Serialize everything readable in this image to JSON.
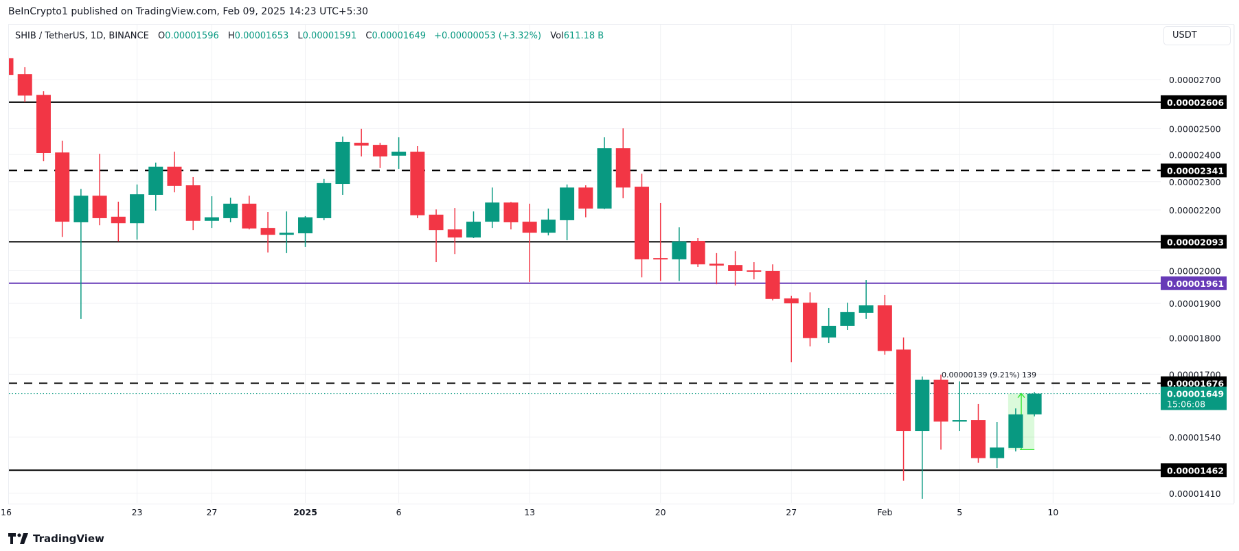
{
  "header": {
    "published": "BeInCrypto1 published on TradingView.com, Feb 09, 2025 14:23 UTC+5:30",
    "symbol": "SHIB / TetherUS, 1D, BINANCE",
    "o_label": "O",
    "o": "0.00001596",
    "h_label": "H",
    "h": "0.00001653",
    "l_label": "L",
    "l": "0.00001591",
    "c_label": "C",
    "c": "0.00001649",
    "change": "+0.00000053 (+3.32%)",
    "vol_label": "Vol",
    "vol": "611.18 B"
  },
  "currency_button": "USDT",
  "footer": {
    "logo_text": "TradingView"
  },
  "colors": {
    "up": "#089981",
    "down": "#f23645",
    "support_purple": "#673ab7",
    "level": "#000000"
  },
  "chart_data": {
    "type": "candlestick",
    "symbol": "SHIB/USDT",
    "interval": "1D",
    "y_scale": "log",
    "ylim": [
      1.38e-05,
      2.8e-05
    ],
    "grid": true,
    "y_ticks": [
      "0.00002700",
      "0.00002500",
      "0.00002400",
      "0.00002300",
      "0.00002200",
      "0.00002000",
      "0.00001900",
      "0.00001800",
      "0.00001700",
      "0.00001540",
      "0.00001410"
    ],
    "x_ticks": [
      {
        "date": "2024-12-16",
        "label": "16",
        "bold": false
      },
      {
        "date": "2024-12-23",
        "label": "23",
        "bold": false
      },
      {
        "date": "2024-12-27",
        "label": "27",
        "bold": false
      },
      {
        "date": "2025-01-01",
        "label": "2025",
        "bold": true
      },
      {
        "date": "2025-01-06",
        "label": "6",
        "bold": false
      },
      {
        "date": "2025-01-13",
        "label": "13",
        "bold": false
      },
      {
        "date": "2025-01-20",
        "label": "20",
        "bold": false
      },
      {
        "date": "2025-01-27",
        "label": "27",
        "bold": false
      },
      {
        "date": "2025-02-01",
        "label": "Feb",
        "bold": false
      },
      {
        "date": "2025-02-05",
        "label": "5",
        "bold": false
      },
      {
        "date": "2025-02-10",
        "label": "10",
        "bold": false
      }
    ],
    "levels": [
      {
        "value": "0.00002606",
        "style": "solid",
        "color": "#000000"
      },
      {
        "value": "0.00002341",
        "style": "dashed",
        "color": "#000000"
      },
      {
        "value": "0.00002093",
        "style": "solid",
        "color": "#000000"
      },
      {
        "value": "0.00001961",
        "style": "solid",
        "color": "#673ab7"
      },
      {
        "value": "0.00001676",
        "style": "dashed",
        "color": "#000000"
      },
      {
        "value": "0.00001462",
        "style": "solid",
        "color": "#000000"
      }
    ],
    "last_price": {
      "value": "0.00001649",
      "countdown": "15:06:08",
      "color": "#089981"
    },
    "measure": {
      "from_date": "2025-02-08",
      "to_date": "2025-02-09",
      "from": 1.51e-05,
      "to": 1.649e-05,
      "label": "0.00000139 (9.21%) 139"
    },
    "candles": [
      {
        "d": "2024-12-16",
        "o": 2.792e-05,
        "h": 2.8e-05,
        "l": 2.717e-05,
        "c": 2.72e-05
      },
      {
        "d": "2024-12-17",
        "o": 2.723e-05,
        "h": 2.753e-05,
        "l": 2.606e-05,
        "c": 2.633e-05
      },
      {
        "d": "2024-12-18",
        "o": 2.636e-05,
        "h": 2.651e-05,
        "l": 2.375e-05,
        "c": 2.406e-05
      },
      {
        "d": "2024-12-19",
        "o": 2.408e-05,
        "h": 2.453e-05,
        "l": 2.109e-05,
        "c": 2.16e-05
      },
      {
        "d": "2024-12-20",
        "o": 2.158e-05,
        "h": 2.274e-05,
        "l": 1.854e-05,
        "c": 2.25e-05
      },
      {
        "d": "2024-12-21",
        "o": 2.25e-05,
        "h": 2.403e-05,
        "l": 2.148e-05,
        "c": 2.172e-05
      },
      {
        "d": "2024-12-22",
        "o": 2.177e-05,
        "h": 2.229e-05,
        "l": 2.094e-05,
        "c": 2.155e-05
      },
      {
        "d": "2024-12-23",
        "o": 2.155e-05,
        "h": 2.29e-05,
        "l": 2.1e-05,
        "c": 2.255e-05
      },
      {
        "d": "2024-12-24",
        "o": 2.253e-05,
        "h": 2.37e-05,
        "l": 2.198e-05,
        "c": 2.355e-05
      },
      {
        "d": "2024-12-25",
        "o": 2.355e-05,
        "h": 2.411e-05,
        "l": 2.262e-05,
        "c": 2.285e-05
      },
      {
        "d": "2024-12-26",
        "o": 2.287e-05,
        "h": 2.317e-05,
        "l": 2.132e-05,
        "c": 2.163e-05
      },
      {
        "d": "2024-12-27",
        "o": 2.163e-05,
        "h": 2.248e-05,
        "l": 2.139e-05,
        "c": 2.175e-05
      },
      {
        "d": "2024-12-28",
        "o": 2.172e-05,
        "h": 2.243e-05,
        "l": 2.158e-05,
        "c": 2.222e-05
      },
      {
        "d": "2024-12-29",
        "o": 2.222e-05,
        "h": 2.25e-05,
        "l": 2.134e-05,
        "c": 2.137e-05
      },
      {
        "d": "2024-12-30",
        "o": 2.139e-05,
        "h": 2.193e-05,
        "l": 2.058e-05,
        "c": 2.116e-05
      },
      {
        "d": "2024-12-31",
        "o": 2.116e-05,
        "h": 2.195e-05,
        "l": 2.056e-05,
        "c": 2.123e-05
      },
      {
        "d": "2025-01-01",
        "o": 2.121e-05,
        "h": 2.179e-05,
        "l": 2.076e-05,
        "c": 2.175e-05
      },
      {
        "d": "2025-01-02",
        "o": 2.172e-05,
        "h": 2.31e-05,
        "l": 2.165e-05,
        "c": 2.295e-05
      },
      {
        "d": "2025-01-03",
        "o": 2.292e-05,
        "h": 2.469e-05,
        "l": 2.253e-05,
        "c": 2.448e-05
      },
      {
        "d": "2025-01-04",
        "o": 2.445e-05,
        "h": 2.499e-05,
        "l": 2.393e-05,
        "c": 2.434e-05
      },
      {
        "d": "2025-01-05",
        "o": 2.437e-05,
        "h": 2.445e-05,
        "l": 2.35e-05,
        "c": 2.393e-05
      },
      {
        "d": "2025-01-06",
        "o": 2.396e-05,
        "h": 2.466e-05,
        "l": 2.347e-05,
        "c": 2.411e-05
      },
      {
        "d": "2025-01-07",
        "o": 2.411e-05,
        "h": 2.432e-05,
        "l": 2.172e-05,
        "c": 2.182e-05
      },
      {
        "d": "2025-01-08",
        "o": 2.184e-05,
        "h": 2.202e-05,
        "l": 2.027e-05,
        "c": 2.132e-05
      },
      {
        "d": "2025-01-09",
        "o": 2.134e-05,
        "h": 2.207e-05,
        "l": 2.053e-05,
        "c": 2.107e-05
      },
      {
        "d": "2025-01-10",
        "o": 2.107e-05,
        "h": 2.195e-05,
        "l": 2.105e-05,
        "c": 2.16e-05
      },
      {
        "d": "2025-01-11",
        "o": 2.16e-05,
        "h": 2.279e-05,
        "l": 2.139e-05,
        "c": 2.226e-05
      },
      {
        "d": "2025-01-12",
        "o": 2.226e-05,
        "h": 2.228e-05,
        "l": 2.134e-05,
        "c": 2.158e-05
      },
      {
        "d": "2025-01-13",
        "o": 2.16e-05,
        "h": 2.222e-05,
        "l": 1.965e-05,
        "c": 2.123e-05
      },
      {
        "d": "2025-01-14",
        "o": 2.123e-05,
        "h": 2.205e-05,
        "l": 2.114e-05,
        "c": 2.167e-05
      },
      {
        "d": "2025-01-15",
        "o": 2.165e-05,
        "h": 2.29e-05,
        "l": 2.098e-05,
        "c": 2.279e-05
      },
      {
        "d": "2025-01-16",
        "o": 2.279e-05,
        "h": 2.287e-05,
        "l": 2.175e-05,
        "c": 2.205e-05
      },
      {
        "d": "2025-01-17",
        "o": 2.205e-05,
        "h": 2.466e-05,
        "l": 2.203e-05,
        "c": 2.424e-05
      },
      {
        "d": "2025-01-18",
        "o": 2.424e-05,
        "h": 2.501e-05,
        "l": 2.241e-05,
        "c": 2.279e-05
      },
      {
        "d": "2025-01-19",
        "o": 2.282e-05,
        "h": 2.329e-05,
        "l": 1.979e-05,
        "c": 2.036e-05
      },
      {
        "d": "2025-01-20",
        "o": 2.04e-05,
        "h": 2.224e-05,
        "l": 1.968e-05,
        "c": 2.038e-05
      },
      {
        "d": "2025-01-21",
        "o": 2.036e-05,
        "h": 2.141e-05,
        "l": 1.968e-05,
        "c": 2.094e-05
      },
      {
        "d": "2025-01-22",
        "o": 2.096e-05,
        "h": 2.105e-05,
        "l": 2.012e-05,
        "c": 2.02e-05
      },
      {
        "d": "2025-01-23",
        "o": 2.022e-05,
        "h": 2.056e-05,
        "l": 1.958e-05,
        "c": 2.016e-05
      },
      {
        "d": "2025-01-24",
        "o": 2.018e-05,
        "h": 2.062e-05,
        "l": 1.954e-05,
        "c": 1.999e-05
      },
      {
        "d": "2025-01-25",
        "o": 2.001e-05,
        "h": 2.027e-05,
        "l": 1.973e-05,
        "c": 1.997e-05
      },
      {
        "d": "2025-01-26",
        "o": 1.999e-05,
        "h": 2.02e-05,
        "l": 1.909e-05,
        "c": 1.913e-05
      },
      {
        "d": "2025-01-27",
        "o": 1.915e-05,
        "h": 1.923e-05,
        "l": 1.732e-05,
        "c": 1.9e-05
      },
      {
        "d": "2025-01-28",
        "o": 1.902e-05,
        "h": 1.933e-05,
        "l": 1.776e-05,
        "c": 1.799e-05
      },
      {
        "d": "2025-01-29",
        "o": 1.801e-05,
        "h": 1.886e-05,
        "l": 1.785e-05,
        "c": 1.834e-05
      },
      {
        "d": "2025-01-30",
        "o": 1.834e-05,
        "h": 1.902e-05,
        "l": 1.822e-05,
        "c": 1.874e-05
      },
      {
        "d": "2025-01-31",
        "o": 1.872e-05,
        "h": 1.971e-05,
        "l": 1.854e-05,
        "c": 1.894e-05
      },
      {
        "d": "2025-02-01",
        "o": 1.894e-05,
        "h": 1.925e-05,
        "l": 1.753e-05,
        "c": 1.763e-05
      },
      {
        "d": "2025-02-02",
        "o": 1.767e-05,
        "h": 1.801e-05,
        "l": 1.438e-05,
        "c": 1.555e-05
      },
      {
        "d": "2025-02-03",
        "o": 1.555e-05,
        "h": 1.694e-05,
        "l": 1.398e-05,
        "c": 1.685e-05
      },
      {
        "d": "2025-02-04",
        "o": 1.685e-05,
        "h": 1.699e-05,
        "l": 1.51e-05,
        "c": 1.578e-05
      },
      {
        "d": "2025-02-05",
        "o": 1.578e-05,
        "h": 1.681e-05,
        "l": 1.555e-05,
        "c": 1.582e-05
      },
      {
        "d": "2025-02-06",
        "o": 1.582e-05,
        "h": 1.622e-05,
        "l": 1.479e-05,
        "c": 1.49e-05
      },
      {
        "d": "2025-02-07",
        "o": 1.49e-05,
        "h": 1.577e-05,
        "l": 1.467e-05,
        "c": 1.515e-05
      },
      {
        "d": "2025-02-08",
        "o": 1.514e-05,
        "h": 1.611e-05,
        "l": 1.506e-05,
        "c": 1.596e-05
      },
      {
        "d": "2025-02-09",
        "o": 1.596e-05,
        "h": 1.653e-05,
        "l": 1.591e-05,
        "c": 1.649e-05
      }
    ]
  }
}
